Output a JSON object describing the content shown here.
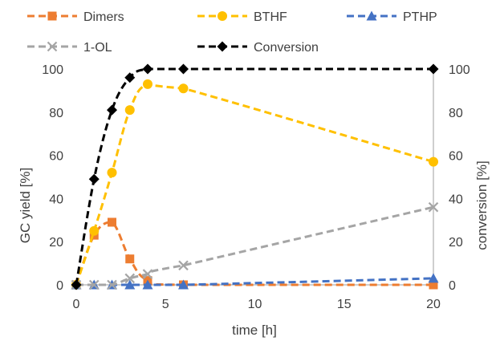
{
  "chart_data": {
    "type": "line",
    "xlabel": "time [h]",
    "ylabel": "GC yield [%]",
    "y2label": "conversion [%]",
    "xlim": [
      0,
      20
    ],
    "ylim": [
      0,
      100
    ],
    "y2lim": [
      0,
      100
    ],
    "xticks": [
      "0",
      "5",
      "10",
      "15",
      "20"
    ],
    "yticks": [
      "0",
      "20",
      "40",
      "60",
      "80",
      "100"
    ],
    "y2ticks": [
      "0",
      "20",
      "40",
      "60",
      "80",
      "100"
    ],
    "grid": false,
    "legend_position": "top",
    "series": [
      {
        "name": "Dimers",
        "color": "#ED7D31",
        "marker": "square",
        "axis": "left",
        "x": [
          0,
          1,
          2,
          3,
          4,
          6,
          20
        ],
        "y": [
          0,
          23,
          29,
          12,
          2,
          0,
          0
        ]
      },
      {
        "name": "BTHF",
        "color": "#FFC000",
        "marker": "circle",
        "axis": "left",
        "x": [
          0,
          1,
          2,
          3,
          4,
          6,
          20
        ],
        "y": [
          0,
          25,
          52,
          81,
          93,
          91,
          57
        ]
      },
      {
        "name": "PTHP",
        "color": "#4472C4",
        "marker": "triangle",
        "axis": "left",
        "x": [
          0,
          1,
          2,
          3,
          4,
          6,
          20
        ],
        "y": [
          0,
          0,
          0,
          0,
          0,
          0,
          3
        ]
      },
      {
        "name": "1-OL",
        "color": "#A5A5A5",
        "marker": "x",
        "axis": "left",
        "x": [
          0,
          1,
          2,
          3,
          4,
          6,
          20
        ],
        "y": [
          0,
          0,
          0,
          3,
          5,
          9,
          36
        ]
      },
      {
        "name": "Conversion",
        "color": "#000000",
        "marker": "diamond",
        "axis": "right",
        "x": [
          0,
          1,
          2,
          3,
          4,
          6,
          20
        ],
        "y": [
          0,
          49,
          81,
          96,
          100,
          100,
          100
        ]
      }
    ]
  }
}
